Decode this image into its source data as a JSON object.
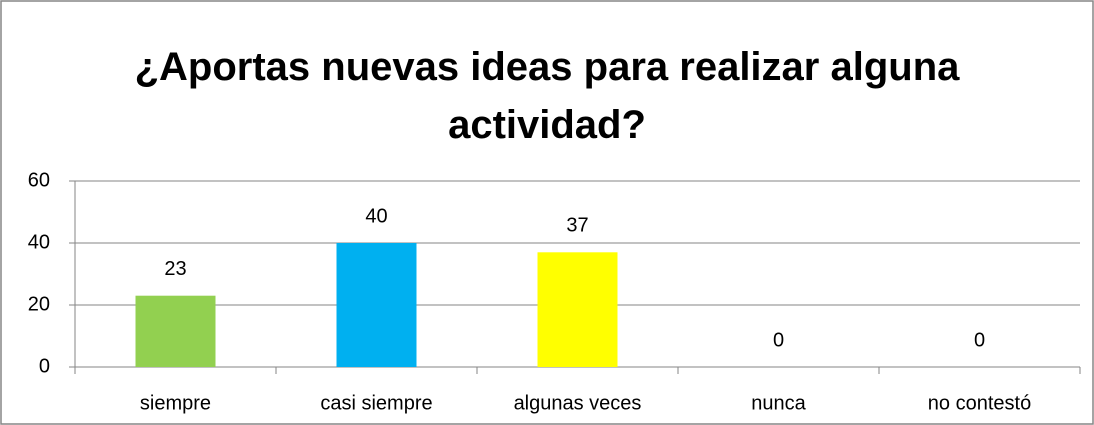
{
  "chart_data": {
    "type": "bar",
    "title": "¿Aportas nuevas ideas para realizar alguna actividad?",
    "categories": [
      "siempre",
      "casi siempre",
      "algunas veces",
      "nunca",
      "no contestó"
    ],
    "values": [
      23,
      40,
      37,
      0,
      0
    ],
    "colors": [
      "#92d050",
      "#00b0f0",
      "#ffff00",
      "#4472c4",
      "#4472c4"
    ],
    "ylim": [
      0,
      60
    ],
    "yticks": [
      0,
      20,
      40,
      60
    ],
    "grid": true
  }
}
